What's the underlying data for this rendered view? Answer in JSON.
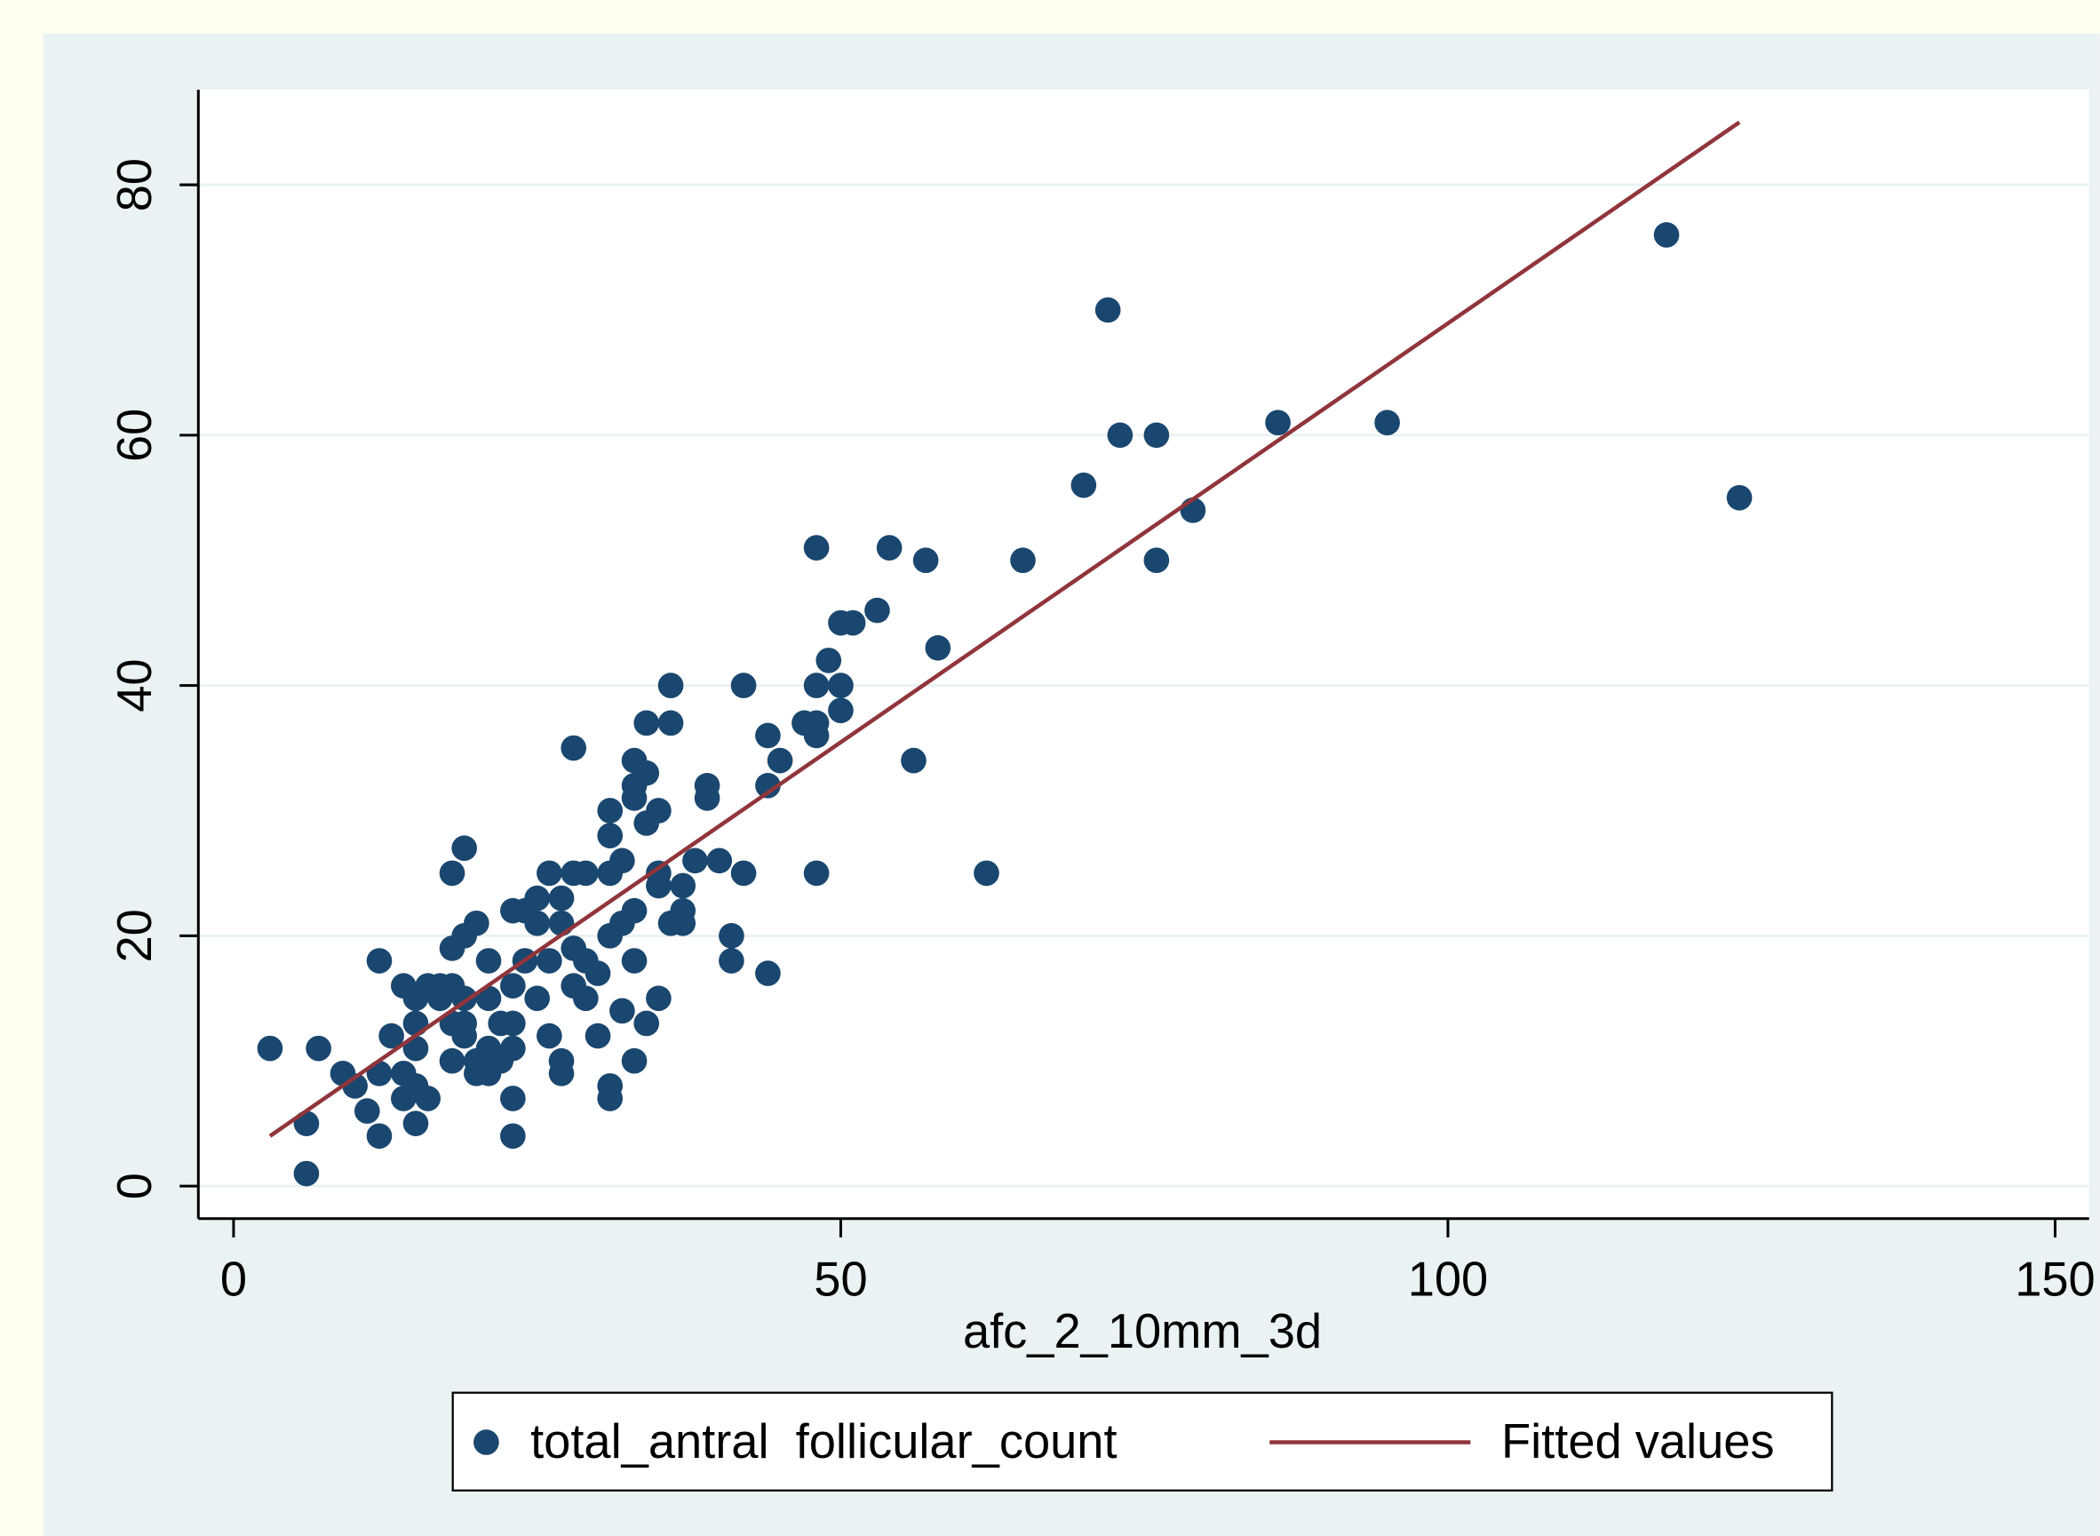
{
  "chart_data": {
    "type": "scatter",
    "x_label": "afc_2_10mm_3d",
    "xlim": [
      -2.9,
      152.8
    ],
    "ylim": [
      -2.6,
      87.6
    ],
    "xticks": [
      0,
      50,
      100,
      150
    ],
    "yticks": [
      0,
      20,
      40,
      60,
      80
    ],
    "grid": true,
    "legend": "bottom",
    "series": [
      {
        "name": "total_antral  follicular_count",
        "type": "scatter",
        "color": "#1a476f",
        "x": [
          3,
          6,
          6,
          7,
          9,
          10,
          11,
          12,
          12,
          12,
          13,
          14,
          14,
          14,
          15,
          15,
          15,
          15,
          15,
          16,
          16,
          17,
          17,
          18,
          18,
          18,
          18,
          18,
          19,
          19,
          19,
          19,
          19,
          20,
          20,
          20,
          21,
          21,
          21,
          21,
          22,
          22,
          23,
          23,
          23,
          23,
          23,
          23,
          24,
          24,
          25,
          25,
          25,
          26,
          26,
          26,
          27,
          27,
          27,
          27,
          28,
          28,
          28,
          28,
          29,
          29,
          29,
          30,
          30,
          31,
          31,
          31,
          31,
          31,
          31,
          32,
          32,
          32,
          33,
          33,
          33,
          33,
          33,
          33,
          34,
          34,
          34,
          34,
          35,
          35,
          35,
          35,
          36,
          36,
          36,
          37,
          37,
          37,
          38,
          39,
          39,
          40,
          41,
          41,
          42,
          42,
          44,
          44,
          44,
          45,
          47,
          48,
          48,
          48,
          48,
          48,
          49,
          50,
          50,
          50,
          51,
          53,
          54,
          56,
          57,
          58,
          62,
          65,
          70,
          72,
          73,
          76,
          76,
          79,
          86,
          95,
          118,
          124
        ],
        "values": [
          11,
          5,
          1,
          11,
          9,
          8,
          6,
          4,
          9,
          18,
          12,
          9,
          7,
          16,
          5,
          8,
          11,
          13,
          15,
          7,
          16,
          15,
          16,
          25,
          19,
          10,
          13,
          16,
          27,
          20,
          12,
          15,
          13,
          21,
          9,
          10,
          18,
          15,
          11,
          9,
          13,
          10,
          22,
          16,
          13,
          11,
          7,
          4,
          18,
          22,
          23,
          21,
          15,
          25,
          18,
          12,
          23,
          21,
          10,
          9,
          35,
          25,
          19,
          16,
          25,
          18,
          15,
          17,
          12,
          30,
          28,
          25,
          20,
          8,
          7,
          26,
          21,
          14,
          34,
          32,
          31,
          22,
          18,
          10,
          37,
          33,
          29,
          13,
          30,
          25,
          24,
          15,
          40,
          37,
          21,
          24,
          22,
          21,
          26,
          32,
          31,
          26,
          20,
          18,
          40,
          25,
          36,
          32,
          17,
          34,
          37,
          51,
          40,
          37,
          36,
          25,
          42,
          45,
          40,
          38,
          45,
          46,
          51,
          34,
          50,
          43,
          25,
          50,
          56,
          70,
          60,
          60,
          50,
          54,
          61,
          61,
          76,
          55
        ]
      },
      {
        "name": "Fitted values",
        "type": "line",
        "color": "#90353b",
        "x": [
          3,
          124
        ],
        "values": [
          4,
          85
        ]
      }
    ]
  }
}
